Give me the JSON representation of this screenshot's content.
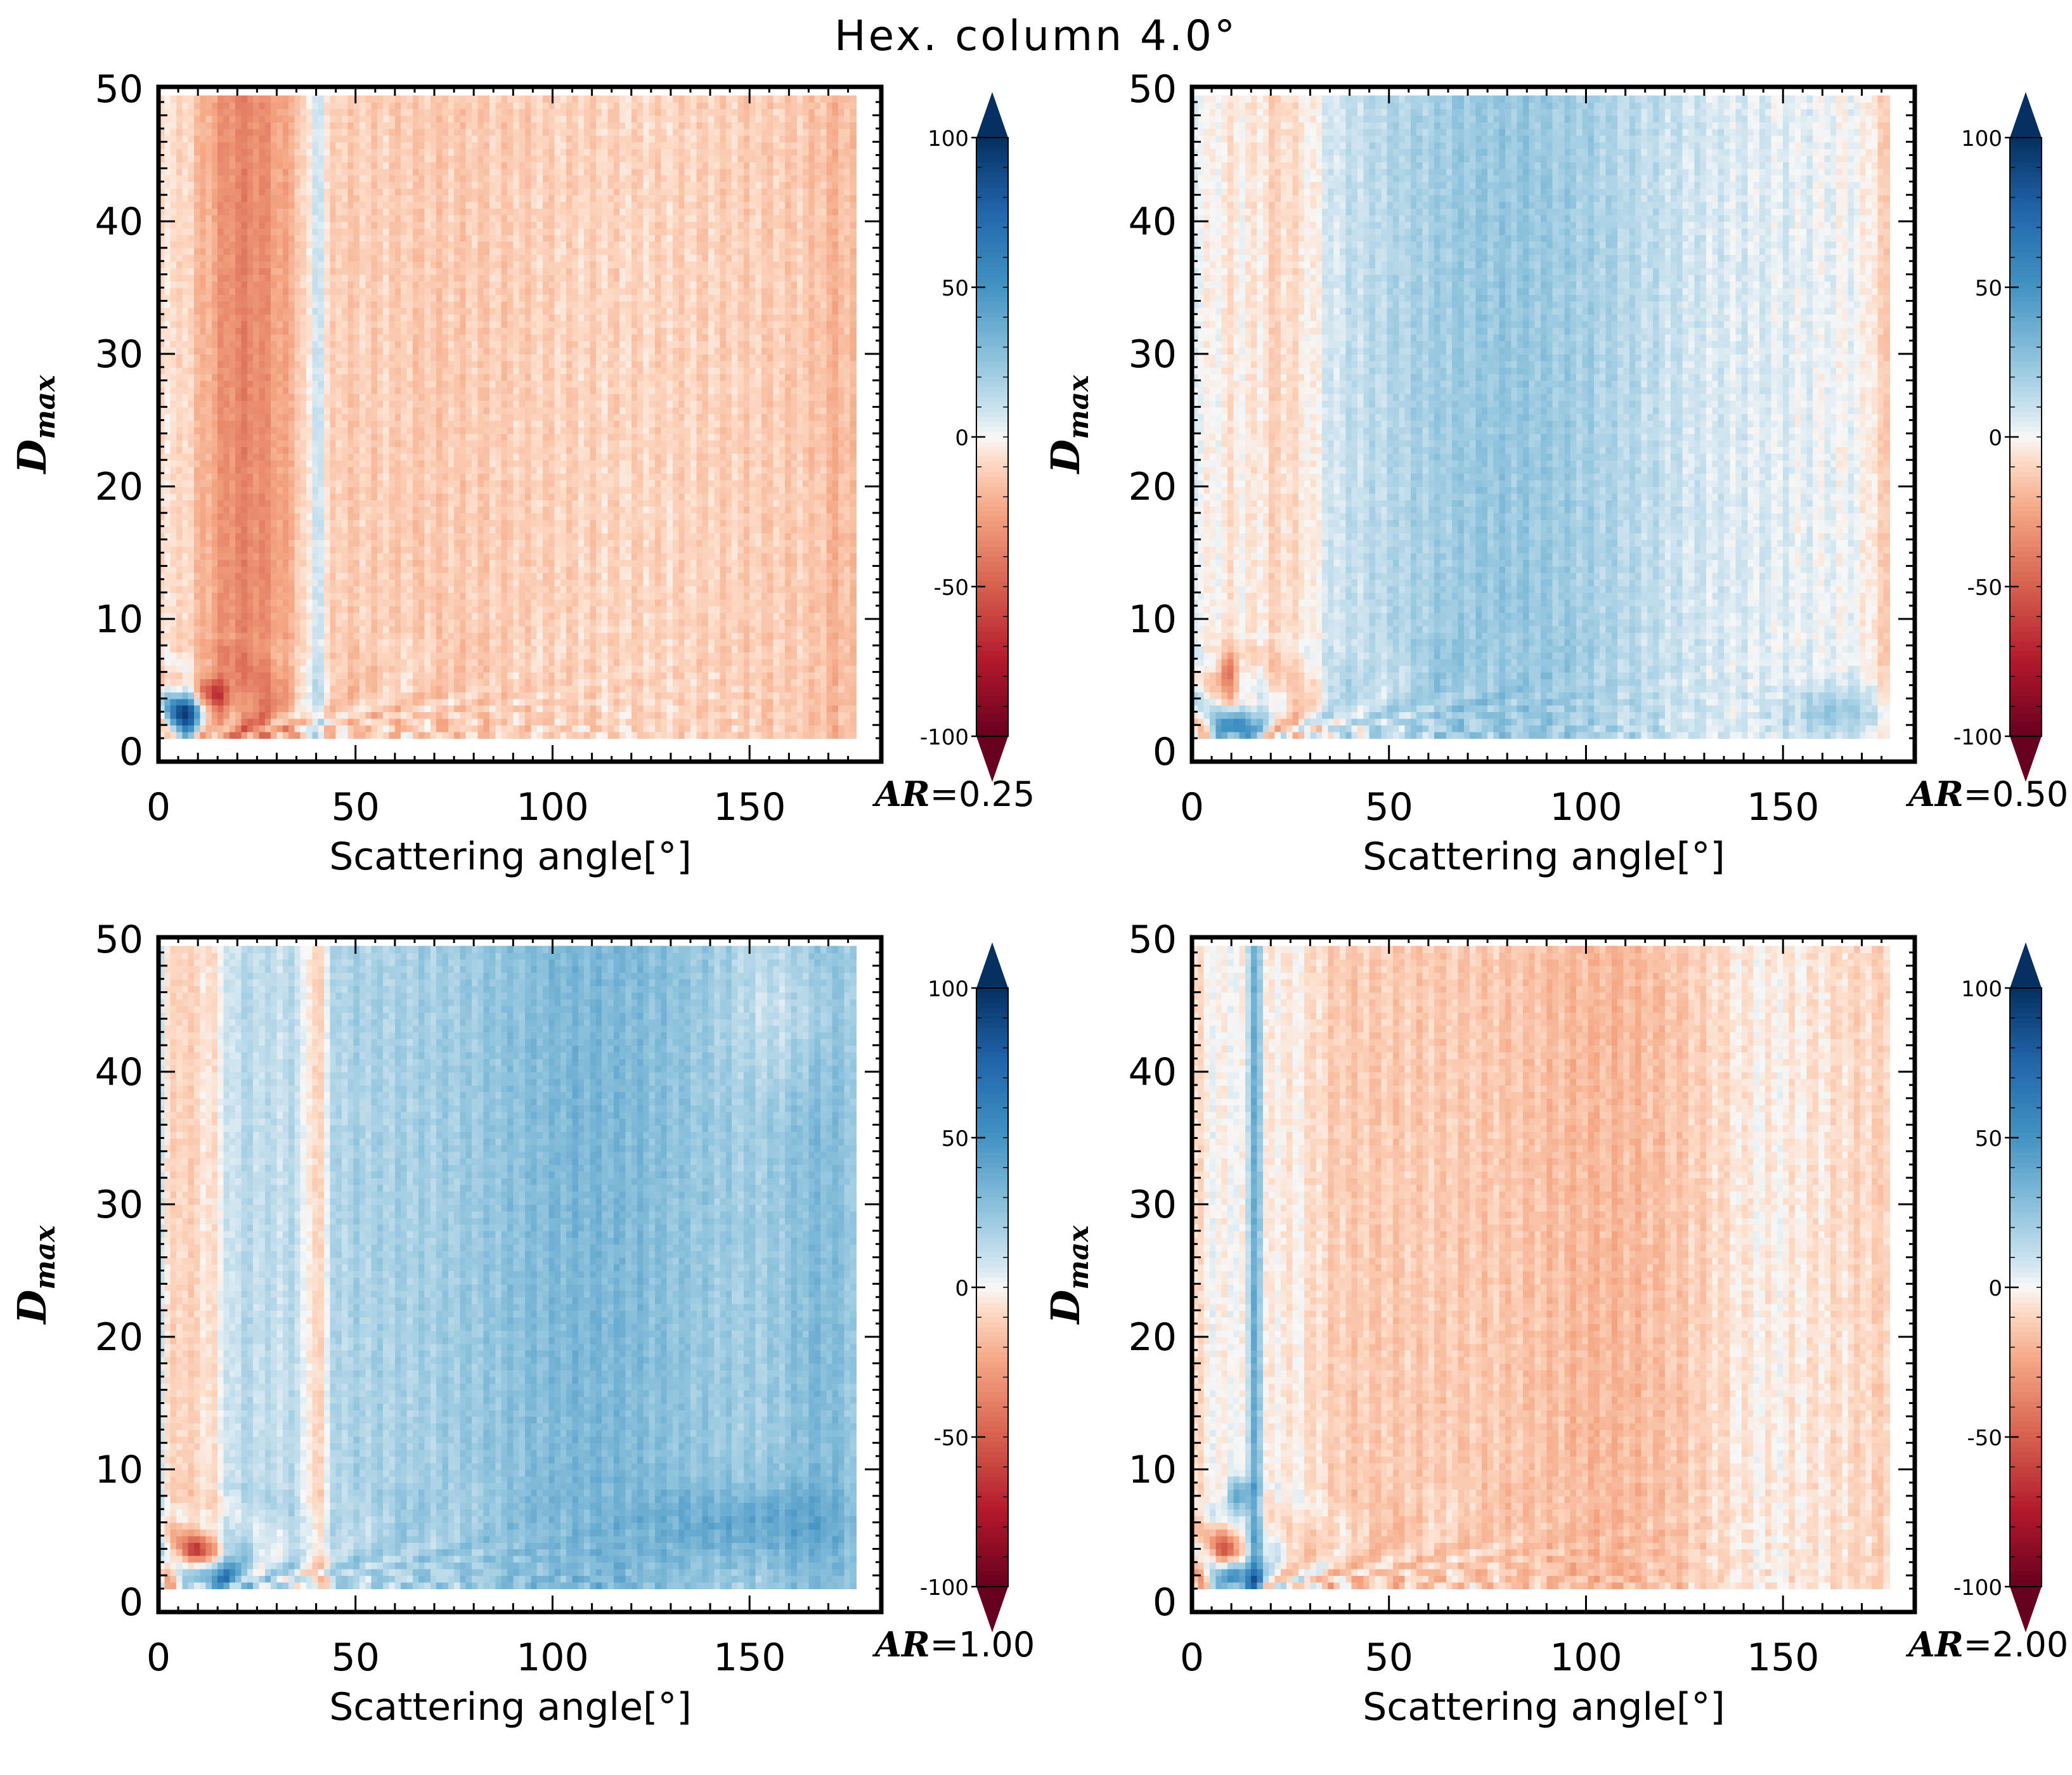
{
  "figure": {
    "title": "Hex. column   4.0°"
  },
  "chart_data": [
    {
      "type": "heatmap",
      "panel": "top-left",
      "xlabel": "Scattering angle[°]",
      "ylabel": "D_max",
      "ylabel_main": "D",
      "ylabel_sub": "max",
      "xlim": [
        0,
        180
      ],
      "ylim": [
        0,
        50
      ],
      "data_x_range": [
        0,
        177
      ],
      "data_y_range": [
        1,
        49.5
      ],
      "x_ticks": [
        0,
        50,
        100,
        150
      ],
      "y_ticks": [
        0,
        10,
        20,
        30,
        40,
        50
      ],
      "colorbar": {
        "min": -100,
        "max": 100,
        "ticks": [
          100,
          50,
          0,
          -50,
          -100
        ],
        "colormap": "RdBu (blue positive, red negative)"
      },
      "ar_label": "AR",
      "ar_value": "=0.25",
      "pattern": {
        "base": -14,
        "bands": [
          {
            "x": 5,
            "w": 6,
            "v": 10
          },
          {
            "x": 14,
            "w": 4,
            "v": 2
          },
          {
            "x": 22,
            "w": 12,
            "v": -22
          },
          {
            "x": 40,
            "w": 3,
            "v": 22
          },
          {
            "x": 37,
            "w": 9,
            "v": 2
          },
          {
            "x": 55,
            "w": 8,
            "v": 2
          },
          {
            "x": 120,
            "w": 35,
            "v": 4
          },
          {
            "x": 172,
            "w": 4,
            "v": -6
          }
        ],
        "blobs": [
          {
            "x": 7,
            "y": 3,
            "sx": 5,
            "sy": 1.5,
            "v": 95
          },
          {
            "x": 14,
            "y": 4.5,
            "sx": 4,
            "sy": 1.2,
            "v": -50
          }
        ]
      }
    },
    {
      "type": "heatmap",
      "panel": "top-right",
      "xlabel": "Scattering angle[°]",
      "ylabel": "D_max",
      "ylabel_main": "D",
      "ylabel_sub": "max",
      "xlim": [
        0,
        180
      ],
      "ylim": [
        0,
        50
      ],
      "data_x_range": [
        0,
        177
      ],
      "data_y_range": [
        1,
        49.5
      ],
      "x_ticks": [
        0,
        50,
        100,
        150
      ],
      "y_ticks": [
        0,
        10,
        20,
        30,
        40,
        50
      ],
      "colorbar": {
        "min": -100,
        "max": 100,
        "ticks": [
          100,
          50,
          0,
          -50,
          -100
        ],
        "colormap": "RdBu (blue positive, red negative)"
      },
      "ar_label": "AR",
      "ar_value": "=0.50",
      "pattern": {
        "base": 0,
        "bands": [
          {
            "x": 10,
            "w": 5,
            "v": -6
          },
          {
            "x": 22,
            "w": 6,
            "v": -14
          },
          {
            "x": 30,
            "w": 4,
            "v": -8
          },
          {
            "x": 80,
            "w": 45,
            "v": 24
          },
          {
            "x": 150,
            "w": 15,
            "v": 2
          },
          {
            "x": 175,
            "w": 3,
            "v": -12
          }
        ],
        "blobs": [
          {
            "x": 12,
            "y": 2,
            "sx": 5,
            "sy": 1.3,
            "v": 70
          },
          {
            "x": 9,
            "y": 6,
            "sx": 3,
            "sy": 1.5,
            "v": -40
          },
          {
            "x": 165,
            "y": 3,
            "sx": 14,
            "sy": 2,
            "v": 22
          }
        ]
      }
    },
    {
      "type": "heatmap",
      "panel": "bottom-left",
      "xlabel": "Scattering angle[°]",
      "ylabel": "D_max",
      "ylabel_main": "D",
      "ylabel_sub": "max",
      "xlim": [
        0,
        180
      ],
      "ylim": [
        0,
        50
      ],
      "data_x_range": [
        0,
        177
      ],
      "data_y_range": [
        1,
        49.5
      ],
      "x_ticks": [
        0,
        50,
        100,
        150
      ],
      "y_ticks": [
        0,
        10,
        20,
        30,
        40,
        50
      ],
      "colorbar": {
        "min": -100,
        "max": 100,
        "ticks": [
          100,
          50,
          0,
          -50,
          -100
        ],
        "colormap": "RdBu (blue positive, red negative)"
      },
      "ar_label": "AR",
      "ar_value": "=1.00",
      "pattern": {
        "base": 18,
        "bands": [
          {
            "x": 5,
            "w": 5,
            "v": -28
          },
          {
            "x": 13,
            "w": 5,
            "v": -22
          },
          {
            "x": 40,
            "w": 3,
            "v": -28
          },
          {
            "x": 30,
            "w": 10,
            "v": -6
          },
          {
            "x": 110,
            "w": 30,
            "v": 14
          },
          {
            "x": 168,
            "w": 10,
            "v": 12
          }
        ],
        "blobs": [
          {
            "x": 14,
            "y": 2,
            "sx": 6,
            "sy": 1.2,
            "v": 60
          },
          {
            "x": 10,
            "y": 4,
            "sx": 5,
            "sy": 1.2,
            "v": -45
          },
          {
            "x": 160,
            "y": 45,
            "sx": 14,
            "sy": 6,
            "v": -12
          },
          {
            "x": 150,
            "y": 6,
            "sx": 25,
            "sy": 3,
            "v": 18
          }
        ]
      }
    },
    {
      "type": "heatmap",
      "panel": "bottom-right",
      "xlabel": "Scattering angle[°]",
      "ylabel": "D_max",
      "ylabel_main": "D",
      "ylabel_sub": "max",
      "xlim": [
        0,
        180
      ],
      "ylim": [
        0,
        50
      ],
      "data_x_range": [
        0,
        177
      ],
      "data_y_range": [
        1,
        49.5
      ],
      "x_ticks": [
        0,
        50,
        100,
        150
      ],
      "y_ticks": [
        0,
        10,
        20,
        30,
        40,
        50
      ],
      "colorbar": {
        "min": -100,
        "max": 100,
        "ticks": [
          100,
          50,
          0,
          -50,
          -100
        ],
        "colormap": "RdBu (blue positive, red negative)"
      },
      "ar_label": "AR",
      "ar_value": "=2.00",
      "pattern": {
        "base": -13,
        "bands": [
          {
            "x": 8,
            "w": 8,
            "v": 13
          },
          {
            "x": 16,
            "w": 2,
            "v": 40
          },
          {
            "x": 25,
            "w": 8,
            "v": 10
          },
          {
            "x": 105,
            "w": 20,
            "v": -6
          },
          {
            "x": 145,
            "w": 15,
            "v": 10
          },
          {
            "x": 165,
            "w": 12,
            "v": 4
          }
        ],
        "blobs": [
          {
            "x": 12,
            "y": 2,
            "sx": 5,
            "sy": 1.2,
            "v": 65
          },
          {
            "x": 8,
            "y": 4,
            "sx": 4,
            "sy": 1.5,
            "v": -45
          },
          {
            "x": 12,
            "y": 8,
            "sx": 3,
            "sy": 1.3,
            "v": 45
          }
        ]
      }
    }
  ]
}
